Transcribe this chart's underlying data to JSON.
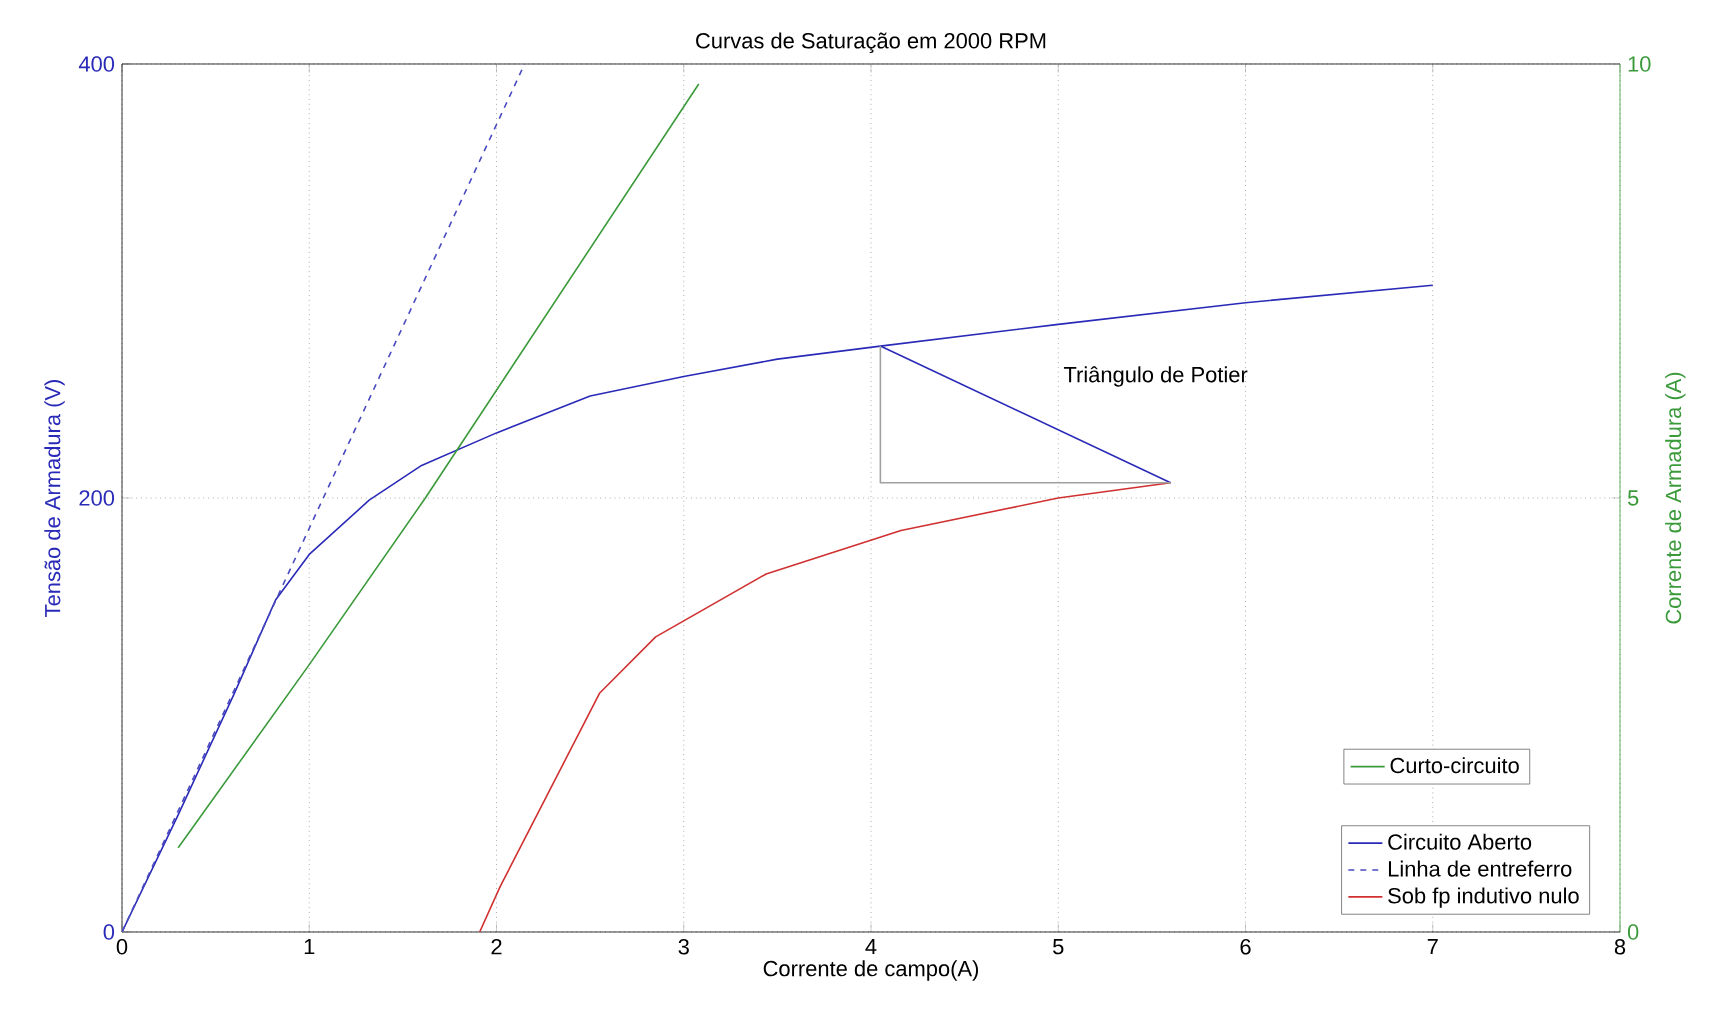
{
  "chart_data": {
    "type": "line",
    "title": "Curvas de Saturação em 2000 RPM",
    "xlabel": "Corrente de campo(A)",
    "ylabel": "Tensão de Armadura (V)",
    "y2label": "Corrente de Armadura (A)",
    "xlim": [
      0,
      8
    ],
    "xticks": [
      0,
      1,
      2,
      3,
      4,
      5,
      6,
      7,
      8
    ],
    "ylim": [
      0,
      400
    ],
    "yticks": [
      0,
      200,
      400
    ],
    "y2lim": [
      0,
      10
    ],
    "y2ticks": [
      0,
      5,
      10
    ],
    "grid": true,
    "legend": "bottom right",
    "line_style": "solid",
    "series": [
      {
        "name": "Curto-circuito",
        "color": "#3a9a3a",
        "axis": "y2",
        "x": [
          0.3,
          1,
          1.62,
          3.08
        ],
        "values": [
          0.97,
          3.08,
          5,
          9.77
        ]
      },
      {
        "name": "Circuito Aberto",
        "color": "#2a2ab8",
        "x": [
          0,
          0.3,
          0.6,
          0.82,
          1,
          1.32,
          1.6,
          2,
          2.5,
          3,
          3.5,
          4.05,
          5,
          6,
          7
        ],
        "values": [
          0,
          54,
          110,
          153,
          174,
          199,
          215,
          230,
          247,
          256,
          264,
          270,
          280,
          290,
          298
        ]
      },
      {
        "name": "Linha de entreferro",
        "color": "#4a4ac0",
        "line_style": "dashed",
        "x": [
          0,
          2.15
        ],
        "values": [
          0,
          400
        ]
      },
      {
        "name": "Sob fp indutivo nulo",
        "color": "#d03030",
        "x": [
          1.91,
          2.02,
          2.55,
          2.85,
          3.44,
          4.16,
          5,
          5.6
        ],
        "values": [
          0,
          21,
          110,
          136,
          165,
          185,
          200,
          207
        ]
      },
      {
        "color": "#2a2ab8",
        "x": [
          4.05,
          5.6
        ],
        "values": [
          270,
          207
        ]
      },
      {
        "color": "#a0a0a0",
        "x": [
          4.05,
          4.05,
          5.6
        ],
        "values": [
          270,
          207,
          207
        ]
      }
    ],
    "annotations": [
      "Triângulo de Potier"
    ]
  }
}
